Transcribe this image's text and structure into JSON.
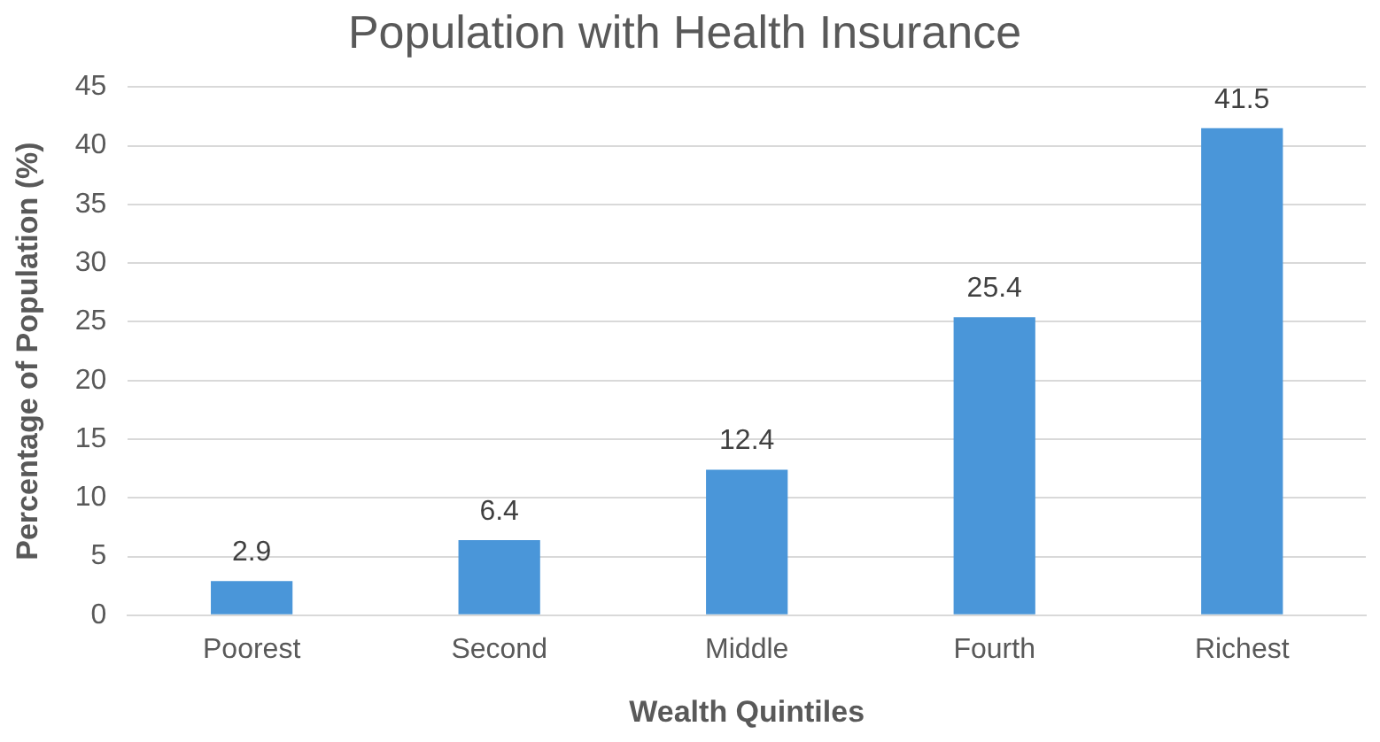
{
  "chart_data": {
    "type": "bar",
    "title": "Population with Health Insurance",
    "xlabel": "Wealth Quintiles",
    "ylabel": "Percentage of Population (%)",
    "categories": [
      "Poorest",
      "Second",
      "Middle",
      "Fourth",
      "Richest"
    ],
    "values": [
      2.9,
      6.4,
      12.4,
      25.4,
      41.5
    ],
    "color": "#4a96d9",
    "ylim": [
      0,
      45
    ],
    "yticks": [
      0,
      5,
      10,
      15,
      20,
      25,
      30,
      35,
      40,
      45
    ],
    "grid": "y",
    "data_labels": true,
    "legend": false
  }
}
